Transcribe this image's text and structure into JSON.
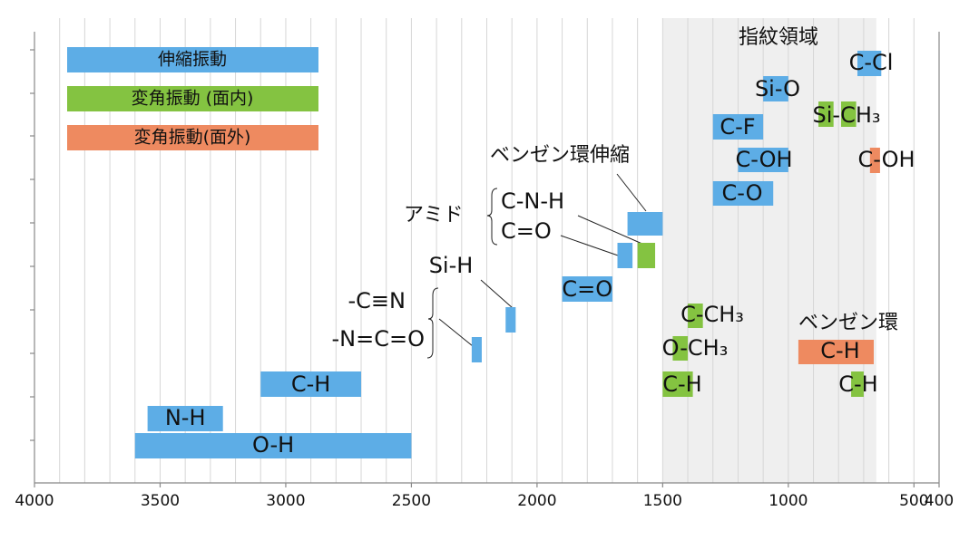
{
  "chart_data": {
    "type": "range-bar",
    "series": [
      {
        "name": "伸縮振動",
        "color": "#5dade6"
      },
      {
        "name": "変角振動 (面内)",
        "color": "#84c341"
      },
      {
        "name": "変角振動(面外)",
        "color": "#ee8a60"
      }
    ],
    "region": {
      "label": "指紋領域",
      "from": 1500,
      "to": 650,
      "color": "#efefef"
    },
    "annotations": [
      "アミド"
    ],
    "items": [
      {
        "labels": [
          "O-H"
        ],
        "series": 0,
        "ranges": [
          [
            3600,
            2500
          ]
        ]
      },
      {
        "labels": [
          "N-H"
        ],
        "series": 0,
        "ranges": [
          [
            3550,
            3250
          ]
        ]
      },
      {
        "labels": [
          "C-H"
        ],
        "series": 0,
        "ranges": [
          [
            3100,
            2700
          ]
        ]
      },
      {
        "labels": [
          "-C≡N",
          "-N=C=O"
        ],
        "series": 0,
        "ranges": [
          [
            2260,
            2220
          ]
        ]
      },
      {
        "labels": [
          "Si-H"
        ],
        "series": 0,
        "ranges": [
          [
            2125,
            2085
          ]
        ]
      },
      {
        "labels": [
          "C=O"
        ],
        "series": 0,
        "ranges": [
          [
            1900,
            1700
          ]
        ]
      },
      {
        "labels": [
          "C=O"
        ],
        "series": 0,
        "ranges": [
          [
            1680,
            1620
          ]
        ]
      },
      {
        "labels": [
          "C-N-H"
        ],
        "series": 1,
        "ranges": [
          [
            1600,
            1530
          ]
        ]
      },
      {
        "labels": [
          "ベンゼン環伸縮"
        ],
        "series": 0,
        "ranges": [
          [
            1640,
            1500
          ]
        ]
      },
      {
        "labels": [
          "C-O"
        ],
        "series": 0,
        "ranges": [
          [
            1300,
            1060
          ]
        ]
      },
      {
        "labels": [
          "C-OH"
        ],
        "series": 0,
        "ranges": [
          [
            1200,
            1000
          ]
        ]
      },
      {
        "labels": [
          "C-F"
        ],
        "series": 0,
        "ranges": [
          [
            1300,
            1100
          ]
        ]
      },
      {
        "labels": [
          "Si-O"
        ],
        "series": 0,
        "ranges": [
          [
            1100,
            1000
          ]
        ]
      },
      {
        "labels": [
          "C-Cl"
        ],
        "series": 0,
        "ranges": [
          [
            725,
            630
          ]
        ]
      },
      {
        "labels": [
          "Si-CH₃"
        ],
        "series": 1,
        "ranges": [
          [
            880,
            820
          ],
          [
            790,
            730
          ]
        ]
      },
      {
        "labels": [
          "C-OH"
        ],
        "series": 2,
        "ranges": [
          [
            675,
            635
          ]
        ]
      },
      {
        "labels": [
          "C-CH₃"
        ],
        "series": 1,
        "ranges": [
          [
            1400,
            1340
          ]
        ]
      },
      {
        "labels": [
          "O-CH₃"
        ],
        "series": 1,
        "ranges": [
          [
            1460,
            1400
          ]
        ]
      },
      {
        "labels": [
          "C-H"
        ],
        "series": 1,
        "ranges": [
          [
            1500,
            1380
          ]
        ]
      },
      {
        "labels": [
          "C-H",
          "ベンゼン環"
        ],
        "series": 2,
        "ranges": [
          [
            960,
            660
          ]
        ]
      },
      {
        "labels": [
          "C-H"
        ],
        "series": 1,
        "ranges": [
          [
            750,
            700
          ]
        ]
      }
    ],
    "xlim": [
      4000,
      400
    ],
    "xticks": [
      4000,
      3500,
      3000,
      2500,
      2000,
      1500,
      1000,
      500,
      400
    ],
    "grid": true,
    "grid_step": 100
  }
}
